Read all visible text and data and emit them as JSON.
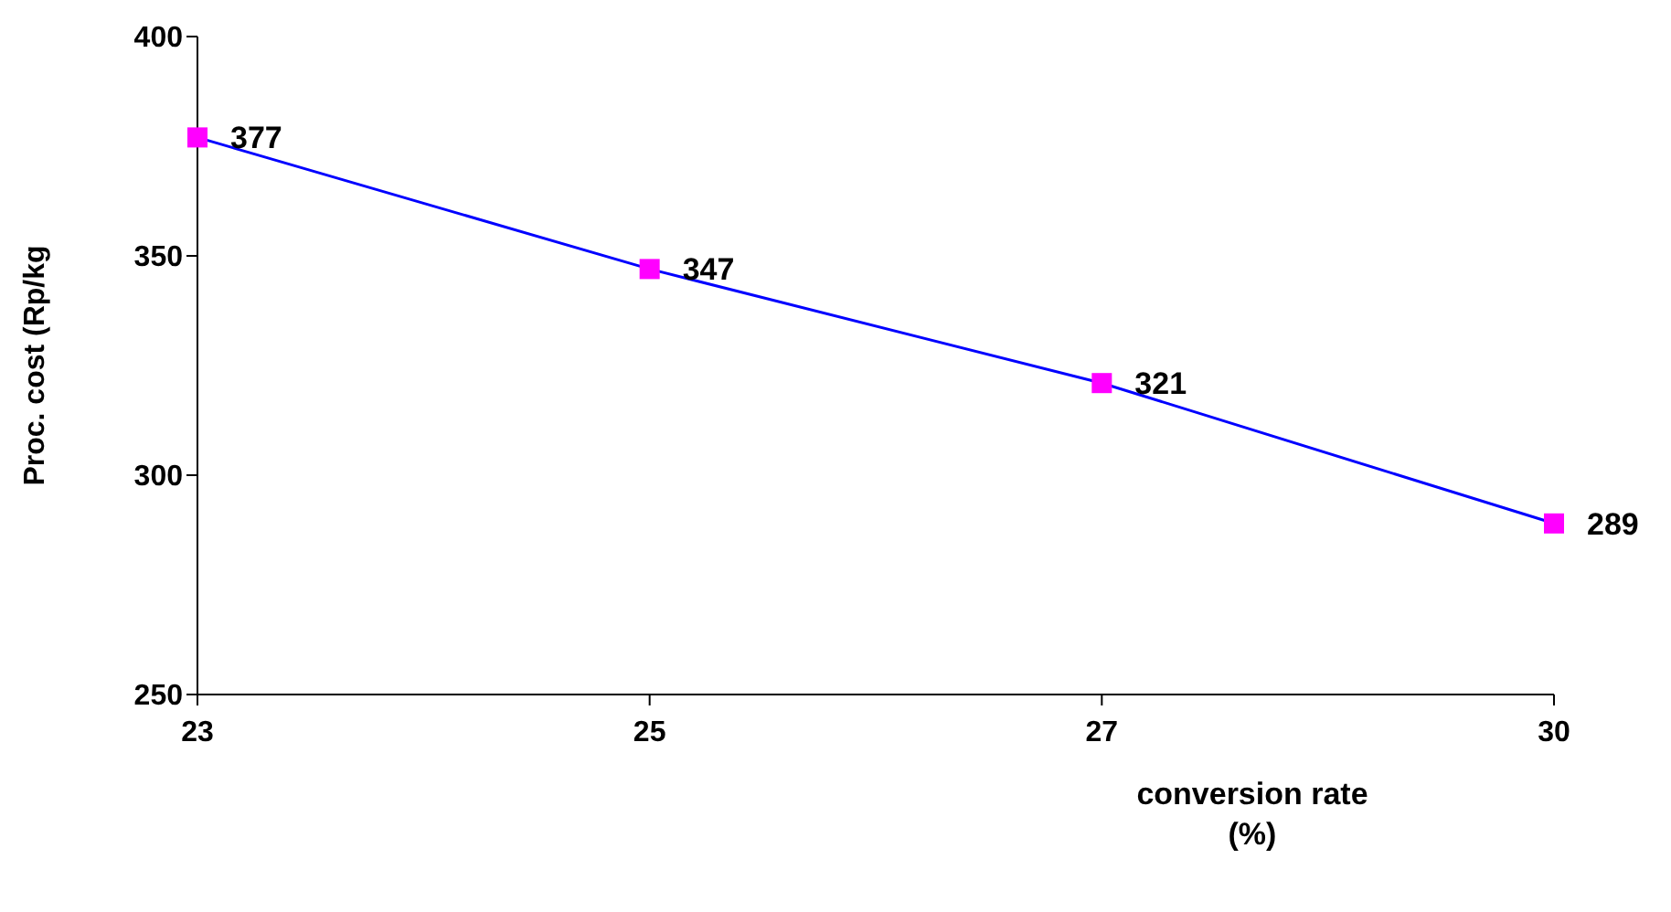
{
  "chart_data": {
    "type": "line",
    "xlabel": "conversion rate (%)",
    "ylabel": "Proc. cost (Rp/kg",
    "categories": [
      "23",
      "25",
      "27",
      "30"
    ],
    "series": [
      {
        "color": "#0000ff",
        "colors": [
          "#ff00ff",
          "#ff00ff",
          "#ff00ff",
          "#ff00ff"
        ],
        "values": [
          377,
          347,
          321,
          289
        ]
      }
    ],
    "ylim": [
      250,
      400
    ],
    "yticks": [
      250,
      300,
      350,
      400
    ],
    "grid": false,
    "legend": false,
    "marker": "square",
    "line_style": "solid",
    "data_labels": true
  }
}
